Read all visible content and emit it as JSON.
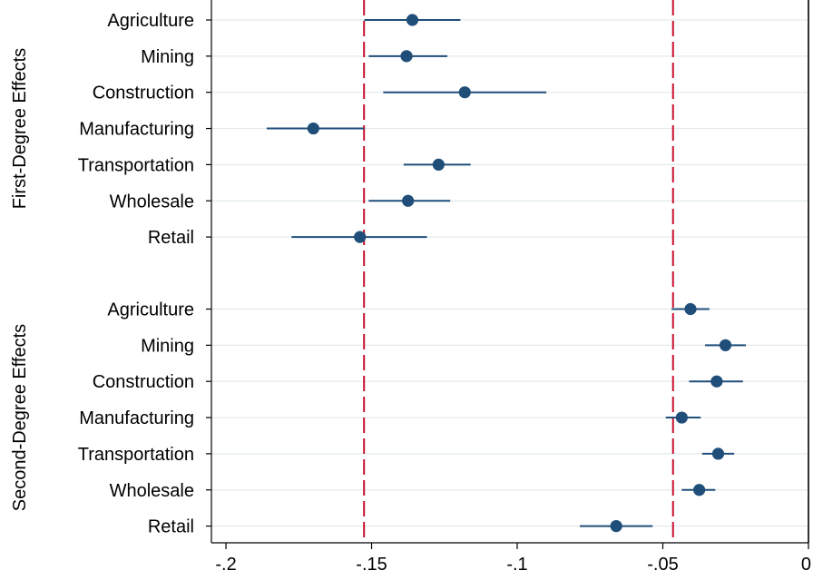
{
  "chart_data": {
    "type": "scatter",
    "subtype": "coefficient-plot",
    "title": "",
    "xlabel": "",
    "ylabel": "",
    "xlim": [
      -0.205,
      0
    ],
    "x_ticks": [
      -0.2,
      -0.15,
      -0.1,
      -0.05,
      0
    ],
    "x_tick_labels": [
      "-.2",
      "-.15",
      "-.1",
      "-.05",
      "0"
    ],
    "grid": "horizontal",
    "legend": "none",
    "colors": {
      "marker": "#1f4e79",
      "reference_line": "#c8102e",
      "zero_line": "#000000",
      "grid": "#e3eaee"
    },
    "reference_lines": [
      {
        "x": -0.1526,
        "style": "dashed",
        "color": "#c8102e"
      },
      {
        "x": -0.0465,
        "style": "dashed",
        "color": "#c8102e"
      },
      {
        "x": 0,
        "style": "solid",
        "color": "#000000"
      }
    ],
    "groups": [
      {
        "label": "First-Degree Effects",
        "points": [
          {
            "category": "Agriculture",
            "estimate": -0.136,
            "ci": [
              -0.1525,
              -0.1195
            ]
          },
          {
            "category": "Mining",
            "estimate": -0.138,
            "ci": [
              -0.151,
              -0.124
            ]
          },
          {
            "category": "Construction",
            "estimate": -0.118,
            "ci": [
              -0.146,
              -0.09
            ]
          },
          {
            "category": "Manufacturing",
            "estimate": -0.17,
            "ci": [
              -0.186,
              -0.1525
            ]
          },
          {
            "category": "Transportation",
            "estimate": -0.127,
            "ci": [
              -0.139,
              -0.116
            ]
          },
          {
            "category": "Wholesale",
            "estimate": -0.1375,
            "ci": [
              -0.151,
              -0.123
            ]
          },
          {
            "category": "Retail",
            "estimate": -0.154,
            "ci": [
              -0.1775,
              -0.131
            ]
          }
        ]
      },
      {
        "label": "Second-Degree Effects",
        "points": [
          {
            "category": "Agriculture",
            "estimate": -0.0405,
            "ci": [
              -0.047,
              -0.034
            ]
          },
          {
            "category": "Mining",
            "estimate": -0.0285,
            "ci": [
              -0.0355,
              -0.0215
            ]
          },
          {
            "category": "Construction",
            "estimate": -0.0315,
            "ci": [
              -0.041,
              -0.0225
            ]
          },
          {
            "category": "Manufacturing",
            "estimate": -0.0435,
            "ci": [
              -0.049,
              -0.037
            ]
          },
          {
            "category": "Transportation",
            "estimate": -0.031,
            "ci": [
              -0.0365,
              -0.0255
            ]
          },
          {
            "category": "Wholesale",
            "estimate": -0.0375,
            "ci": [
              -0.0435,
              -0.032
            ]
          },
          {
            "category": "Retail",
            "estimate": -0.066,
            "ci": [
              -0.0785,
              -0.0535
            ]
          }
        ]
      }
    ]
  }
}
